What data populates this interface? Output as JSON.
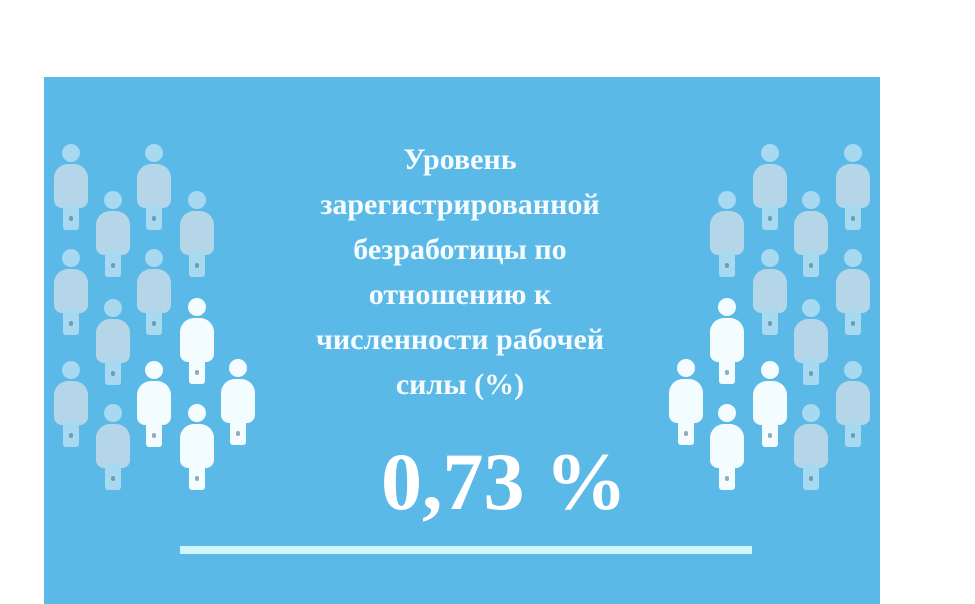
{
  "infographic": {
    "title": "Уровень\nзарегистрированной\nбезработицы по\nотношению к\nчисленности рабочей\nсилы (%)",
    "value": "0,73 %",
    "colors": {
      "background": "#5ab9e7",
      "text": "#ffffff",
      "bar": "#d0f6fa",
      "figure_pale": "#a7d9f1",
      "figure_white": "#f3fcff"
    },
    "icons": [
      "person-icon"
    ]
  }
}
